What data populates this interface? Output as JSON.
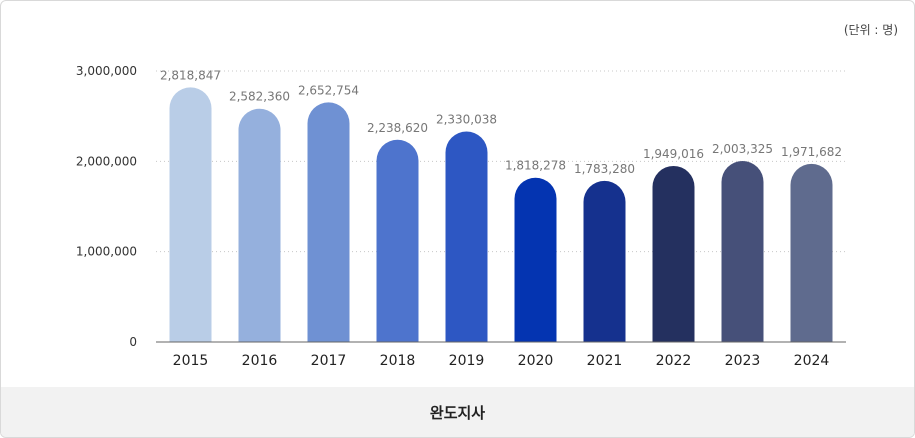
{
  "unit_label": "(단위 : 명)",
  "footer_title": "완도지사",
  "chart_data": {
    "type": "bar",
    "categories": [
      "2015",
      "2016",
      "2017",
      "2018",
      "2019",
      "2020",
      "2021",
      "2022",
      "2023",
      "2024"
    ],
    "series": [
      {
        "values": [
          2818847,
          2582360,
          2652754,
          2238620,
          2330038,
          1818278,
          1783280,
          1949016,
          2003325,
          1971682
        ],
        "value_labels": [
          "2,818,847",
          "2,582,360",
          "2,652,754",
          "2,238,620",
          "2,330,038",
          "1,818,278",
          "1,783,280",
          "1,949,016",
          "2,003,325",
          "1,971,682"
        ]
      }
    ],
    "bar_colors": [
      "#b9cde7",
      "#95b0dd",
      "#6f91d3",
      "#4e74cd",
      "#2d57c3",
      "#0434b1",
      "#15318e",
      "#24305f",
      "#465079",
      "#5f6b8e"
    ],
    "yticks": [
      0,
      1000000,
      2000000,
      3000000
    ],
    "ytick_labels": [
      "0",
      "1,000,000",
      "2,000,000",
      "3,000,000"
    ],
    "ylim": [
      0,
      3000000
    ],
    "grid": "dotted horizontal",
    "title": "",
    "xlabel": "",
    "ylabel": ""
  }
}
